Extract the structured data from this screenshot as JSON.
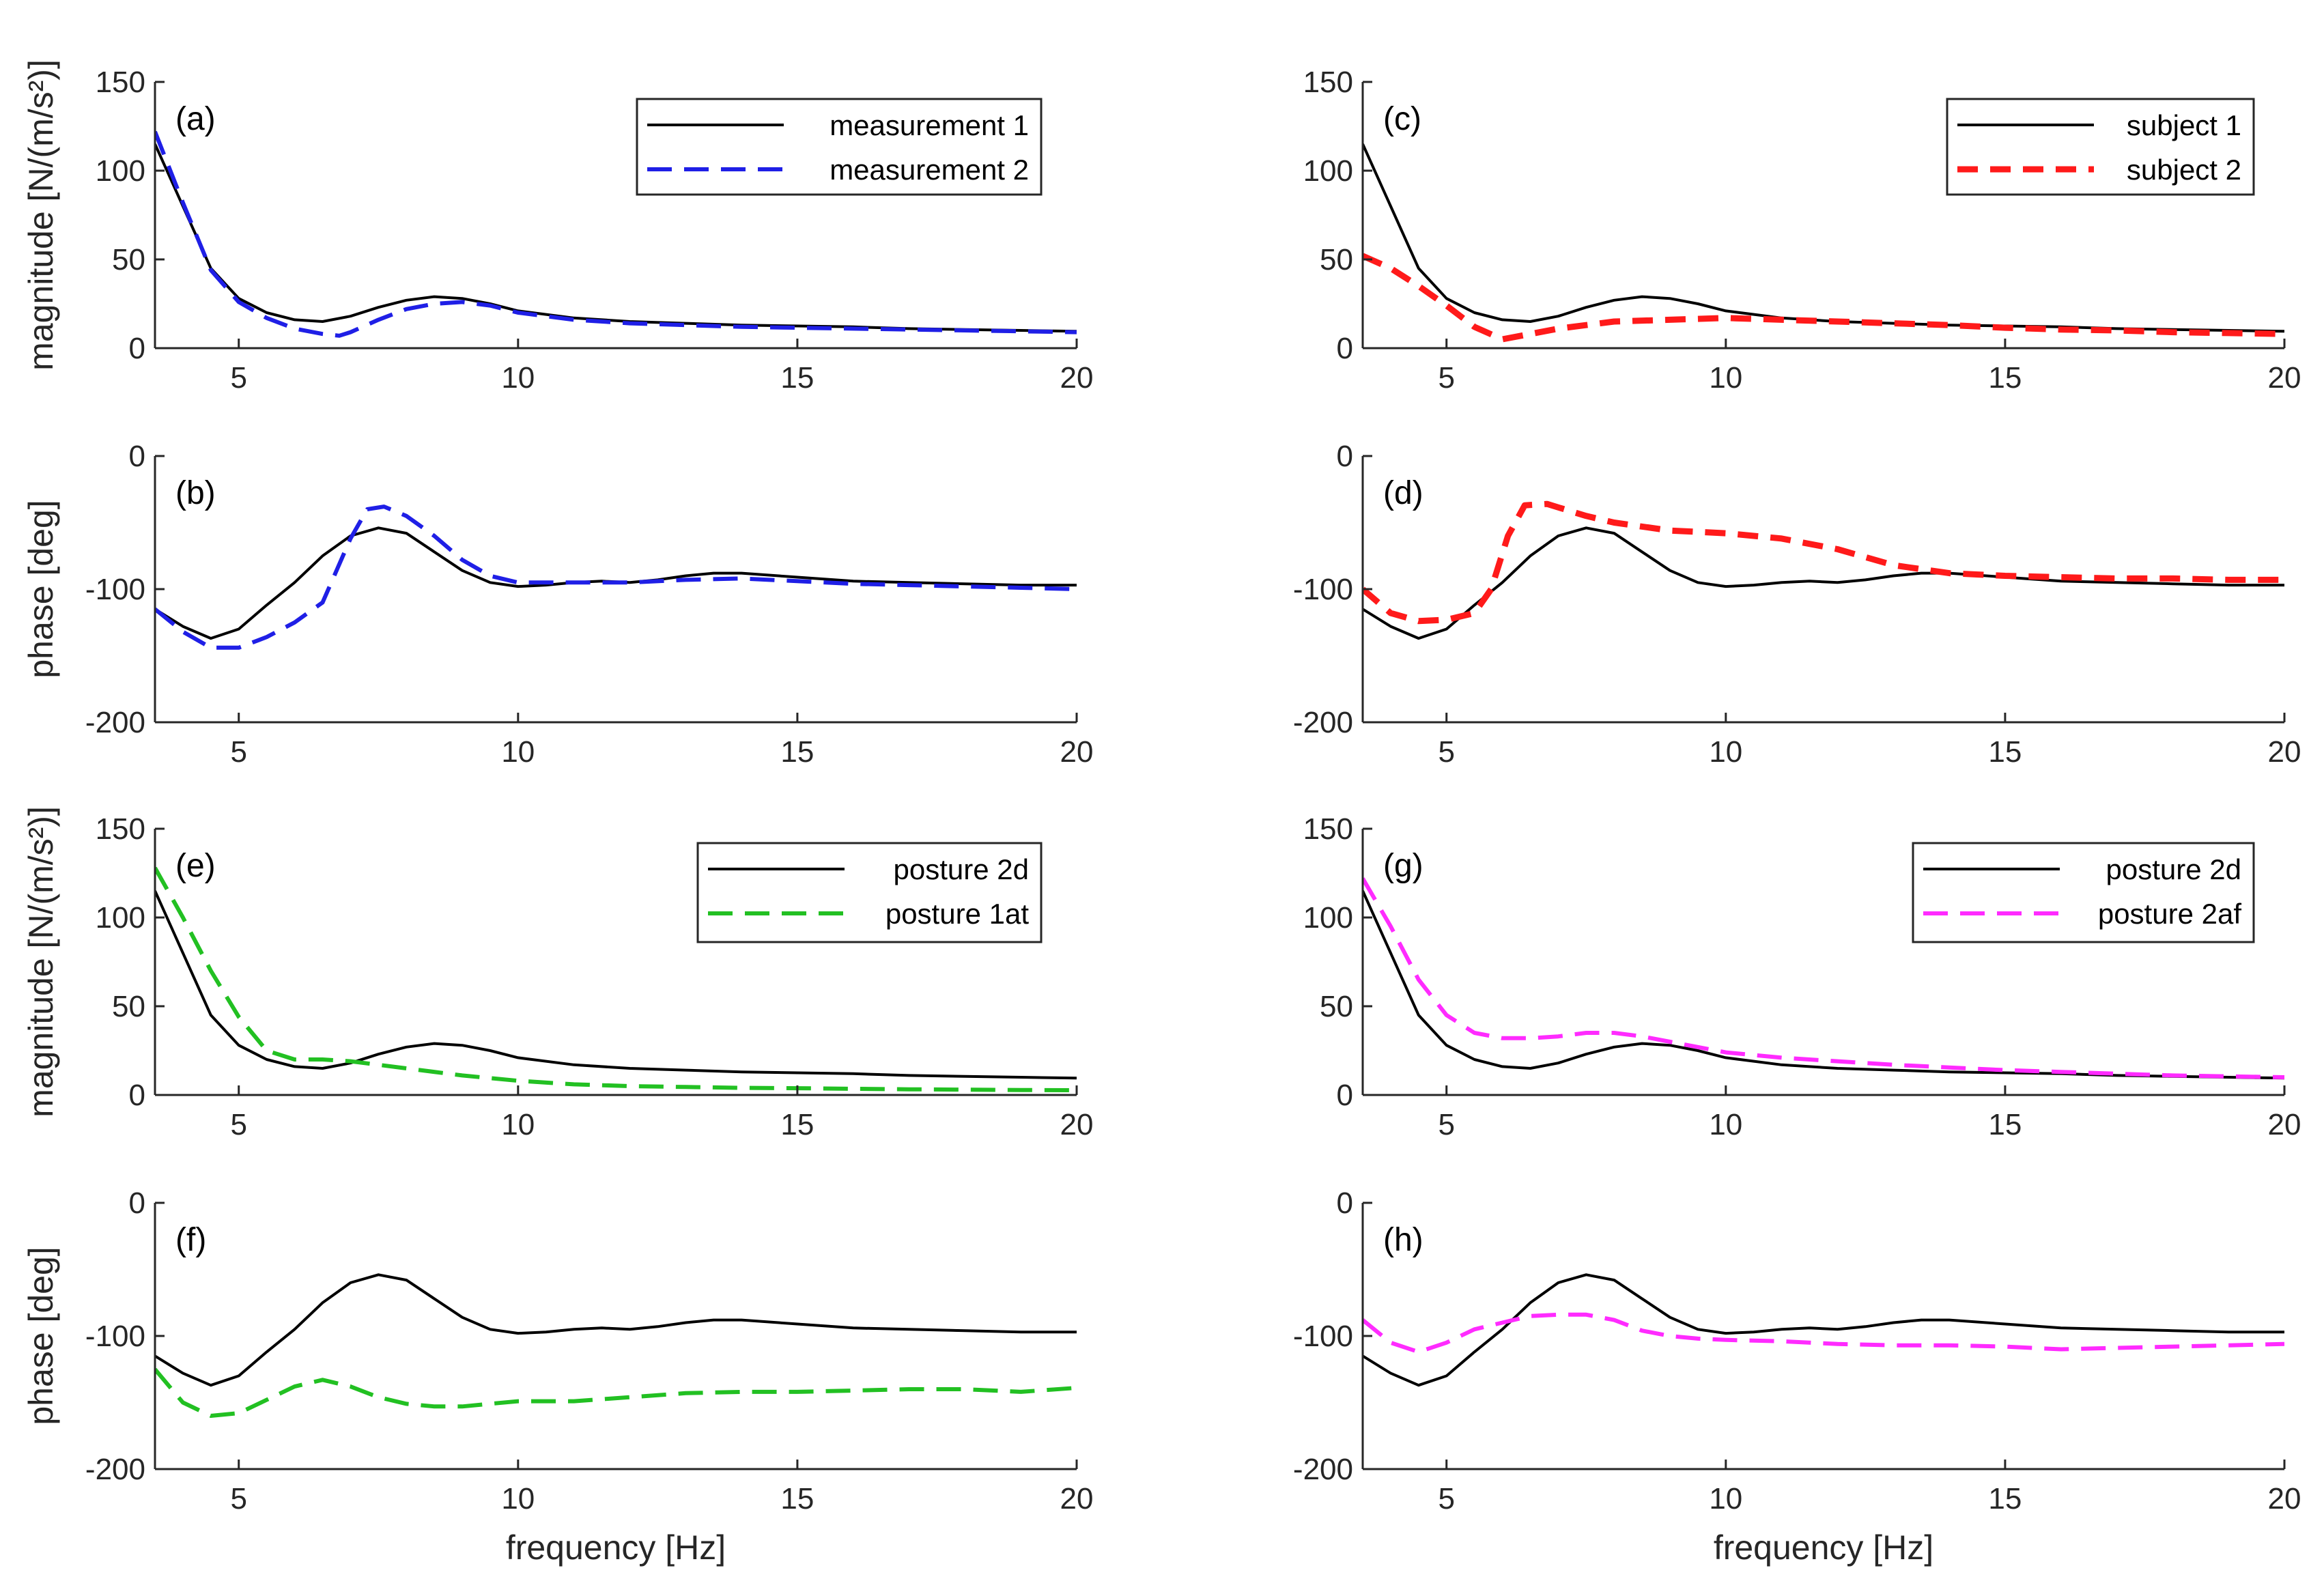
{
  "colors": {
    "measurement1": "#000000",
    "measurement2": "#1f1fe6",
    "subject2": "#ff1a1a",
    "posture1at": "#22c022",
    "posture2af": "#ff2bff"
  },
  "xlabel": "frequency   [Hz]",
  "ylabel_magnitude": "magnitude [N/(m/s²)]",
  "ylabel_phase": "phase [deg]",
  "chart_data": [
    {
      "id": "a",
      "type": "line",
      "panel_label": "(a)",
      "xlabel": "",
      "ylabel": "magnitude [N/(m/s²)]",
      "xlim": [
        3.5,
        20
      ],
      "ylim": [
        0,
        150
      ],
      "xticks": [
        5,
        10,
        15,
        20
      ],
      "yticks": [
        0,
        50,
        100,
        150
      ],
      "legend": [
        "measurement 1",
        "measurement 2"
      ],
      "series": [
        {
          "name": "measurement 1",
          "style": "solid",
          "color": "#000000",
          "x": [
            3.5,
            4,
            4.5,
            5,
            5.5,
            6,
            6.5,
            7,
            7.5,
            8,
            8.5,
            9,
            9.5,
            10,
            11,
            12,
            13,
            14,
            15,
            16,
            17,
            18,
            19,
            20
          ],
          "y": [
            115,
            80,
            45,
            28,
            20,
            16,
            15,
            18,
            23,
            27,
            29,
            28,
            25,
            21,
            17,
            15,
            14,
            13,
            12.5,
            12,
            11,
            10.5,
            10,
            9.5
          ]
        },
        {
          "name": "measurement 2",
          "style": "dashed",
          "color": "#1f1fe6",
          "x": [
            3.5,
            4,
            4.5,
            5,
            5.5,
            6,
            6.5,
            6.8,
            7,
            7.5,
            8,
            8.5,
            9,
            9.5,
            10,
            11,
            12,
            13,
            14,
            15,
            16,
            17,
            18,
            19,
            20
          ],
          "y": [
            122,
            82,
            44,
            26,
            17,
            11,
            8,
            7,
            9,
            16,
            22,
            25,
            26,
            24,
            20,
            16,
            14,
            13,
            12,
            11.5,
            11,
            10.5,
            10,
            9.5,
            9
          ]
        }
      ]
    },
    {
      "id": "b",
      "type": "line",
      "panel_label": "(b)",
      "xlabel": "",
      "ylabel": "phase [deg]",
      "xlim": [
        3.5,
        20
      ],
      "ylim": [
        -200,
        0
      ],
      "xticks": [
        5,
        10,
        15,
        20
      ],
      "yticks": [
        -200,
        -100,
        0
      ],
      "series": [
        {
          "name": "measurement 1",
          "style": "solid",
          "color": "#000000",
          "x": [
            3.5,
            4,
            4.5,
            5,
            5.5,
            6,
            6.5,
            7,
            7.5,
            8,
            8.5,
            9,
            9.5,
            10,
            10.5,
            11,
            11.5,
            12,
            12.5,
            13,
            13.5,
            14,
            15,
            16,
            17,
            18,
            19,
            20
          ],
          "y": [
            -115,
            -128,
            -137,
            -130,
            -112,
            -95,
            -75,
            -60,
            -54,
            -58,
            -72,
            -86,
            -95,
            -98,
            -97,
            -95,
            -94,
            -95,
            -93,
            -90,
            -88,
            -88,
            -91,
            -94,
            -95,
            -96,
            -97,
            -97
          ]
        },
        {
          "name": "measurement 2",
          "style": "dashed",
          "color": "#1f1fe6",
          "x": [
            3.5,
            4,
            4.5,
            5,
            5.5,
            6,
            6.5,
            7,
            7.3,
            7.6,
            8,
            8.5,
            9,
            9.5,
            10,
            11,
            12,
            13,
            14,
            15,
            16,
            17,
            18,
            19,
            20
          ],
          "y": [
            -115,
            -132,
            -144,
            -144,
            -136,
            -125,
            -110,
            -62,
            -40,
            -38,
            -45,
            -60,
            -78,
            -90,
            -95,
            -95,
            -95,
            -93,
            -92,
            -94,
            -96,
            -97,
            -98,
            -99,
            -100
          ]
        }
      ]
    },
    {
      "id": "c",
      "type": "line",
      "panel_label": "(c)",
      "xlabel": "",
      "ylabel": "",
      "xlim": [
        3.5,
        20
      ],
      "ylim": [
        0,
        150
      ],
      "xticks": [
        5,
        10,
        15,
        20
      ],
      "yticks": [
        0,
        50,
        100,
        150
      ],
      "legend": [
        "subject 1",
        "subject 2"
      ],
      "series": [
        {
          "name": "subject 1",
          "style": "solid",
          "color": "#000000",
          "x": [
            3.5,
            4,
            4.5,
            5,
            5.5,
            6,
            6.5,
            7,
            7.5,
            8,
            8.5,
            9,
            9.5,
            10,
            11,
            12,
            13,
            14,
            15,
            16,
            17,
            18,
            19,
            20
          ],
          "y": [
            115,
            80,
            45,
            28,
            20,
            16,
            15,
            18,
            23,
            27,
            29,
            28,
            25,
            21,
            17,
            15,
            14,
            13,
            12.5,
            12,
            11,
            10.5,
            10,
            9.5
          ]
        },
        {
          "name": "subject 2",
          "style": "dashed",
          "color": "#ff1a1a",
          "x": [
            3.5,
            4,
            4.5,
            5,
            5.5,
            6,
            6.5,
            7,
            7.5,
            8,
            9,
            10,
            11,
            12,
            13,
            14,
            15,
            16,
            17,
            18,
            19,
            20
          ],
          "y": [
            52,
            45,
            35,
            24,
            12,
            5,
            8,
            11,
            13,
            15,
            16,
            17,
            16,
            15,
            14,
            13,
            11.5,
            10.5,
            10,
            9,
            8.5,
            8
          ]
        }
      ]
    },
    {
      "id": "d",
      "type": "line",
      "panel_label": "(d)",
      "xlabel": "",
      "ylabel": "",
      "xlim": [
        3.5,
        20
      ],
      "ylim": [
        -200,
        0
      ],
      "xticks": [
        5,
        10,
        15,
        20
      ],
      "yticks": [
        -200,
        -100,
        0
      ],
      "series": [
        {
          "name": "subject 1",
          "style": "solid",
          "color": "#000000",
          "x": [
            3.5,
            4,
            4.5,
            5,
            5.5,
            6,
            6.5,
            7,
            7.5,
            8,
            8.5,
            9,
            9.5,
            10,
            10.5,
            11,
            11.5,
            12,
            12.5,
            13,
            13.5,
            14,
            15,
            16,
            17,
            18,
            19,
            20
          ],
          "y": [
            -115,
            -128,
            -137,
            -130,
            -112,
            -95,
            -75,
            -60,
            -54,
            -58,
            -72,
            -86,
            -95,
            -98,
            -97,
            -95,
            -94,
            -95,
            -93,
            -90,
            -88,
            -88,
            -91,
            -94,
            -95,
            -96,
            -97,
            -97
          ]
        },
        {
          "name": "subject 2",
          "style": "dashed",
          "color": "#ff1a1a",
          "x": [
            3.5,
            4,
            4.5,
            5,
            5.5,
            5.8,
            6.1,
            6.4,
            6.8,
            7.5,
            8,
            9,
            10,
            11,
            12,
            13,
            14,
            15,
            16,
            17,
            18,
            19,
            20
          ],
          "y": [
            -100,
            -118,
            -124,
            -123,
            -118,
            -100,
            -60,
            -37,
            -36,
            -45,
            -50,
            -56,
            -58,
            -62,
            -70,
            -82,
            -88,
            -90,
            -91,
            -92,
            -92,
            -93,
            -93
          ]
        }
      ]
    },
    {
      "id": "e",
      "type": "line",
      "panel_label": "(e)",
      "xlabel": "",
      "ylabel": "magnitude [N/(m/s²)]",
      "xlim": [
        3.5,
        20
      ],
      "ylim": [
        0,
        150
      ],
      "xticks": [
        5,
        10,
        15,
        20
      ],
      "yticks": [
        0,
        50,
        100,
        150
      ],
      "legend": [
        "posture 2d",
        "posture 1at"
      ],
      "series": [
        {
          "name": "posture 2d",
          "style": "solid",
          "color": "#000000",
          "x": [
            3.5,
            4,
            4.5,
            5,
            5.5,
            6,
            6.5,
            7,
            7.5,
            8,
            8.5,
            9,
            9.5,
            10,
            11,
            12,
            13,
            14,
            15,
            16,
            17,
            18,
            19,
            20
          ],
          "y": [
            115,
            80,
            45,
            28,
            20,
            16,
            15,
            18,
            23,
            27,
            29,
            28,
            25,
            21,
            17,
            15,
            14,
            13,
            12.5,
            12,
            11,
            10.5,
            10,
            9.5
          ]
        },
        {
          "name": "posture 1at",
          "style": "dashed",
          "color": "#22c022",
          "x": [
            3.5,
            4,
            4.5,
            5,
            5.5,
            6,
            6.5,
            7,
            7.5,
            8,
            9,
            10,
            11,
            12,
            13,
            14,
            15,
            16,
            17,
            18,
            19,
            20
          ],
          "y": [
            128,
            100,
            70,
            44,
            25,
            20,
            20,
            19,
            17,
            15,
            11,
            8,
            6,
            5,
            4.5,
            4,
            3.8,
            3.5,
            3.2,
            3,
            2.8,
            2.7
          ]
        }
      ]
    },
    {
      "id": "f",
      "type": "line",
      "panel_label": "(f)",
      "xlabel": "frequency   [Hz]",
      "ylabel": "phase [deg]",
      "xlim": [
        3.5,
        20
      ],
      "ylim": [
        -200,
        0
      ],
      "xticks": [
        5,
        10,
        15,
        20
      ],
      "yticks": [
        -200,
        -100,
        0
      ],
      "series": [
        {
          "name": "posture 2d",
          "style": "solid",
          "color": "#000000",
          "x": [
            3.5,
            4,
            4.5,
            5,
            5.5,
            6,
            6.5,
            7,
            7.5,
            8,
            8.5,
            9,
            9.5,
            10,
            10.5,
            11,
            11.5,
            12,
            12.5,
            13,
            13.5,
            14,
            15,
            16,
            17,
            18,
            19,
            20
          ],
          "y": [
            -115,
            -128,
            -137,
            -130,
            -112,
            -95,
            -75,
            -60,
            -54,
            -58,
            -72,
            -86,
            -95,
            -98,
            -97,
            -95,
            -94,
            -95,
            -93,
            -90,
            -88,
            -88,
            -91,
            -94,
            -95,
            -96,
            -97,
            -97
          ]
        },
        {
          "name": "posture 1at",
          "style": "dashed",
          "color": "#22c022",
          "x": [
            3.5,
            4,
            4.5,
            5,
            5.5,
            6,
            6.5,
            7,
            7.5,
            8,
            8.5,
            9,
            9.5,
            10,
            11,
            12,
            13,
            14,
            15,
            16,
            17,
            18,
            19,
            20
          ],
          "y": [
            -125,
            -150,
            -160,
            -158,
            -148,
            -138,
            -133,
            -138,
            -146,
            -151,
            -153,
            -153,
            -151,
            -149,
            -149,
            -146,
            -143,
            -142,
            -142,
            -141,
            -140,
            -140,
            -142,
            -139
          ]
        }
      ]
    },
    {
      "id": "g",
      "type": "line",
      "panel_label": "(g)",
      "xlabel": "",
      "ylabel": "",
      "xlim": [
        3.5,
        20
      ],
      "ylim": [
        0,
        150
      ],
      "xticks": [
        5,
        10,
        15,
        20
      ],
      "yticks": [
        0,
        50,
        100,
        150
      ],
      "legend": [
        "posture 2d",
        "posture 2af"
      ],
      "series": [
        {
          "name": "posture 2d",
          "style": "solid",
          "color": "#000000",
          "x": [
            3.5,
            4,
            4.5,
            5,
            5.5,
            6,
            6.5,
            7,
            7.5,
            8,
            8.5,
            9,
            9.5,
            10,
            11,
            12,
            13,
            14,
            15,
            16,
            17,
            18,
            19,
            20
          ],
          "y": [
            115,
            80,
            45,
            28,
            20,
            16,
            15,
            18,
            23,
            27,
            29,
            28,
            25,
            21,
            17,
            15,
            14,
            13,
            12.5,
            12,
            11,
            10.5,
            10,
            9.5
          ]
        },
        {
          "name": "posture 2af",
          "style": "dashed",
          "color": "#ff2bff",
          "x": [
            3.5,
            4,
            4.5,
            5,
            5.5,
            6,
            6.5,
            7,
            7.5,
            8,
            8.5,
            9,
            9.5,
            10,
            11,
            12,
            13,
            14,
            15,
            16,
            17,
            18,
            19,
            20
          ],
          "y": [
            122,
            95,
            65,
            45,
            35,
            32,
            32,
            33,
            35,
            35,
            33,
            30,
            27,
            24,
            21,
            19,
            17,
            15.5,
            14,
            13,
            12,
            11,
            10.5,
            10
          ]
        }
      ]
    },
    {
      "id": "h",
      "type": "line",
      "panel_label": "(h)",
      "xlabel": "frequency   [Hz]",
      "ylabel": "",
      "xlim": [
        3.5,
        20
      ],
      "ylim": [
        -200,
        0
      ],
      "xticks": [
        5,
        10,
        15,
        20
      ],
      "yticks": [
        -200,
        -100,
        0
      ],
      "series": [
        {
          "name": "posture 2d",
          "style": "solid",
          "color": "#000000",
          "x": [
            3.5,
            4,
            4.5,
            5,
            5.5,
            6,
            6.5,
            7,
            7.5,
            8,
            8.5,
            9,
            9.5,
            10,
            10.5,
            11,
            11.5,
            12,
            12.5,
            13,
            13.5,
            14,
            15,
            16,
            17,
            18,
            19,
            20
          ],
          "y": [
            -115,
            -128,
            -137,
            -130,
            -112,
            -95,
            -75,
            -60,
            -54,
            -58,
            -72,
            -86,
            -95,
            -98,
            -97,
            -95,
            -94,
            -95,
            -93,
            -90,
            -88,
            -88,
            -91,
            -94,
            -95,
            -96,
            -97,
            -97
          ]
        },
        {
          "name": "posture 2af",
          "style": "dashed",
          "color": "#ff2bff",
          "x": [
            3.5,
            4,
            4.5,
            5,
            5.5,
            6,
            6.5,
            7,
            7.5,
            8,
            8.5,
            9,
            9.5,
            10,
            11,
            12,
            13,
            14,
            15,
            16,
            17,
            18,
            19,
            20
          ],
          "y": [
            -88,
            -105,
            -112,
            -105,
            -95,
            -90,
            -85,
            -84,
            -84,
            -88,
            -96,
            -100,
            -102,
            -103,
            -104,
            -106,
            -107,
            -107,
            -108,
            -110,
            -109,
            -108,
            -107,
            -106
          ]
        }
      ]
    }
  ]
}
